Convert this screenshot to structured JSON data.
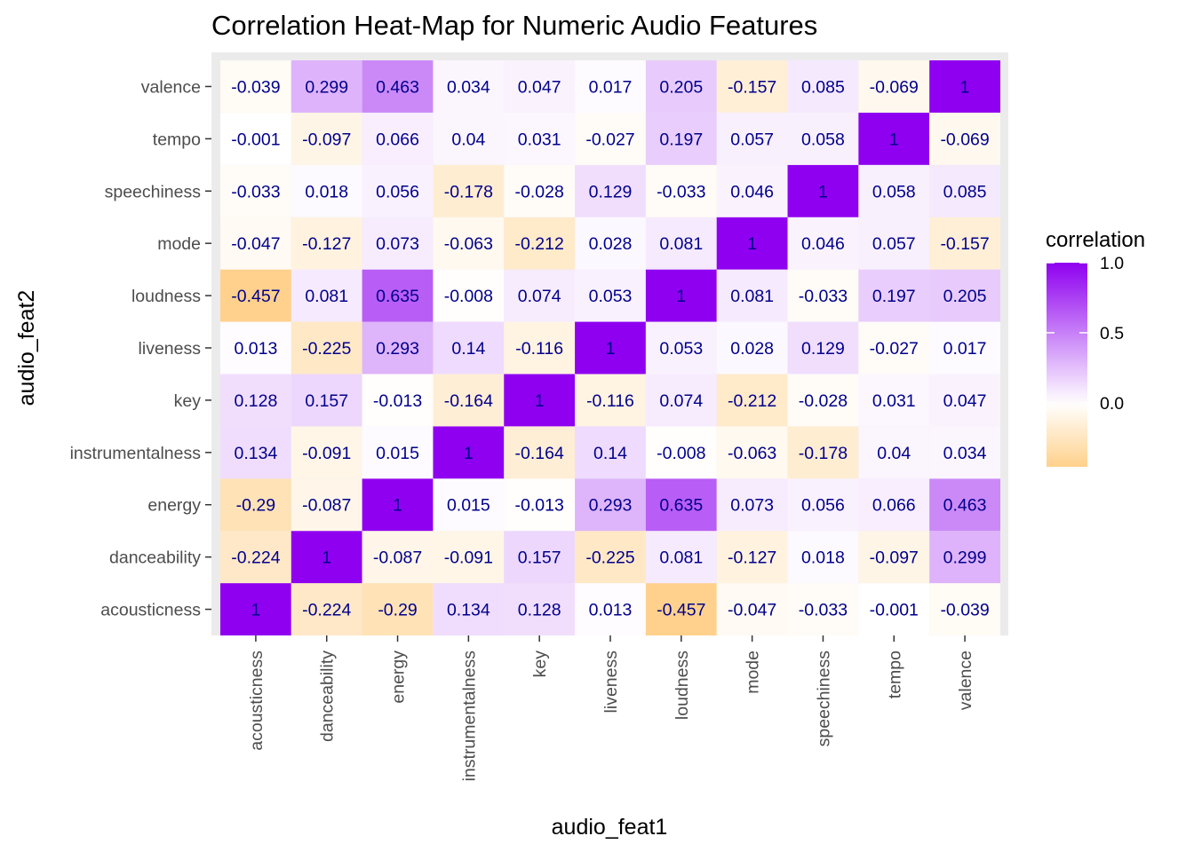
{
  "chart_data": {
    "type": "heatmap",
    "title": "Correlation Heat-Map for Numeric Audio Features",
    "xlabel": "audio_feat1",
    "ylabel": "audio_feat2",
    "features": [
      "acousticness",
      "danceability",
      "energy",
      "instrumentalness",
      "key",
      "liveness",
      "loudness",
      "mode",
      "speechiness",
      "tempo",
      "valence"
    ],
    "matrix": [
      [
        1,
        -0.224,
        -0.29,
        0.134,
        0.128,
        0.013,
        -0.457,
        -0.047,
        -0.033,
        -0.001,
        -0.039
      ],
      [
        -0.224,
        1,
        -0.087,
        -0.091,
        0.157,
        -0.225,
        0.081,
        -0.127,
        0.018,
        -0.097,
        0.299
      ],
      [
        -0.29,
        -0.087,
        1,
        0.015,
        -0.013,
        0.293,
        0.635,
        0.073,
        0.056,
        0.066,
        0.463
      ],
      [
        0.134,
        -0.091,
        0.015,
        1,
        -0.164,
        0.14,
        -0.008,
        -0.063,
        -0.178,
        0.04,
        0.034
      ],
      [
        0.128,
        0.157,
        -0.013,
        -0.164,
        1,
        -0.116,
        0.074,
        -0.212,
        -0.028,
        0.031,
        0.047
      ],
      [
        0.013,
        -0.225,
        0.293,
        0.14,
        -0.116,
        1,
        0.053,
        0.028,
        0.129,
        -0.027,
        0.017
      ],
      [
        -0.457,
        0.081,
        0.635,
        -0.008,
        0.074,
        0.053,
        1,
        0.081,
        -0.033,
        0.197,
        0.205
      ],
      [
        -0.047,
        -0.127,
        0.073,
        -0.063,
        -0.212,
        0.028,
        0.081,
        1,
        0.046,
        0.057,
        -0.157
      ],
      [
        -0.033,
        0.018,
        0.056,
        -0.178,
        -0.028,
        0.129,
        -0.033,
        0.046,
        1,
        0.058,
        0.085
      ],
      [
        -0.001,
        -0.097,
        0.066,
        0.04,
        0.031,
        -0.027,
        0.197,
        0.057,
        0.058,
        1,
        -0.069
      ],
      [
        -0.039,
        0.299,
        0.463,
        0.034,
        0.047,
        0.017,
        0.205,
        -0.157,
        0.085,
        -0.069,
        1
      ]
    ],
    "legend": {
      "title": "correlation",
      "ticks": [
        "1.0",
        "0.5",
        "0.0"
      ],
      "tick_values": [
        1.0,
        0.5,
        0.0
      ],
      "range": [
        -0.457,
        1.0
      ],
      "placement": "right"
    },
    "colors": {
      "low": "#ffd18c",
      "mid": "#ffffff",
      "high": "#8f00f0",
      "panel_border": "#ebebeb",
      "label_text": "#00008b"
    }
  }
}
